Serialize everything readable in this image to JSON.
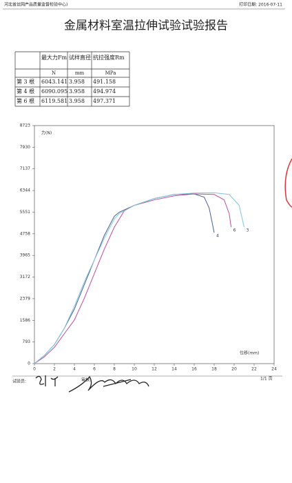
{
  "header": {
    "org": "河北省丝网产品质量监督检验中心)",
    "print_date": "打印日期: 2016-07-11"
  },
  "title": "金属材料室温拉伸试验试验报告",
  "table": {
    "header": [
      "最大力Fm",
      "试样直径",
      "抗拉强度Rm"
    ],
    "units": [
      "N",
      "mm",
      "MPa"
    ],
    "rows": [
      [
        "第 3 根",
        "6043.141",
        "3.958",
        "491.158"
      ],
      [
        "第 4 根",
        "6090.095",
        "3.958",
        "494.974"
      ],
      [
        "第 6 根",
        "6119.581",
        "3.958",
        "497.371"
      ]
    ]
  },
  "chart_data": {
    "type": "line",
    "y_label": "力(N)",
    "x_label": "位移(mm)",
    "xlim": [
      0,
      24
    ],
    "xticks": [
      0,
      2,
      4,
      6,
      8,
      10,
      12,
      14,
      16,
      18,
      20,
      22,
      24
    ],
    "ylim": [
      0,
      8723
    ],
    "yticks": [
      0,
      793,
      1586,
      2379,
      3172,
      3965,
      4758,
      5551,
      6344,
      7137,
      7930,
      8723
    ],
    "series": [
      {
        "name": "4",
        "color": "#4a5f8c",
        "x": [
          0,
          0.5,
          1,
          2,
          3,
          4,
          5,
          6,
          7,
          8,
          8.5,
          10,
          12,
          14,
          16,
          17,
          17.5,
          18
        ],
        "values": [
          0,
          150,
          300,
          700,
          1300,
          2000,
          2900,
          3800,
          4700,
          5400,
          5550,
          5800,
          6050,
          6200,
          6220,
          6100,
          5700,
          4800
        ]
      },
      {
        "name": "6",
        "color": "#c04a9a",
        "x": [
          0,
          1,
          2,
          3,
          4,
          5,
          6,
          7,
          8,
          9,
          10,
          12,
          14,
          16,
          18,
          19,
          19.5,
          19.7
        ],
        "values": [
          0,
          250,
          600,
          1100,
          1600,
          2400,
          3300,
          4200,
          5000,
          5600,
          5800,
          6000,
          6150,
          6220,
          6200,
          6000,
          5500,
          5000
        ]
      },
      {
        "name": "3",
        "color": "#7ec3e0",
        "x": [
          0,
          1,
          2,
          3,
          4,
          5,
          6,
          7,
          8,
          8.5,
          10,
          12,
          14,
          16,
          18,
          19.5,
          20.5,
          21
        ],
        "values": [
          0,
          300,
          700,
          1300,
          2100,
          3000,
          3800,
          4600,
          5300,
          5500,
          5800,
          6050,
          6200,
          6250,
          6260,
          6200,
          5800,
          5000
        ]
      }
    ]
  },
  "footer": {
    "tester": "试验员:",
    "reviewer": "审核:",
    "page": "1/1 页"
  }
}
